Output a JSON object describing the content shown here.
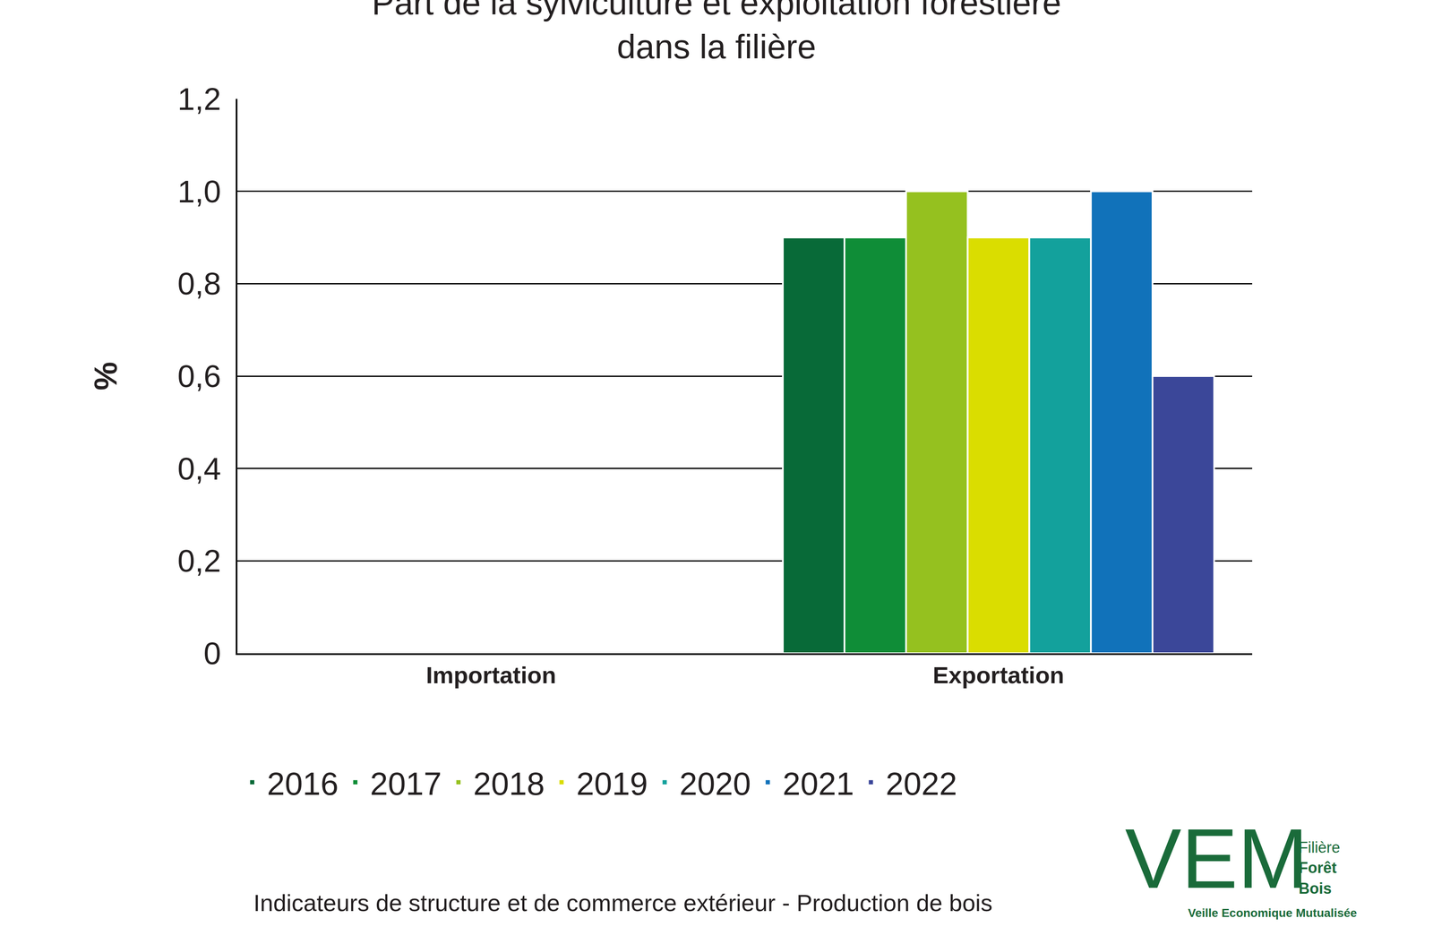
{
  "chart_data": {
    "type": "bar",
    "title": "Part de la sylviculture et exploitation forestière\ndans la filière",
    "y_label": "%",
    "categories": [
      "Importation",
      "Exportation"
    ],
    "series": [
      {
        "name": "2016",
        "color": "#086a38",
        "values": [
          0,
          0.9
        ]
      },
      {
        "name": "2017",
        "color": "#0f8d37",
        "values": [
          0,
          0.9
        ]
      },
      {
        "name": "2018",
        "color": "#95c11f",
        "values": [
          0,
          1.0
        ]
      },
      {
        "name": "2019",
        "color": "#dadd00",
        "values": [
          0,
          0.9
        ]
      },
      {
        "name": "2020",
        "color": "#13a19c",
        "values": [
          0,
          0.9
        ]
      },
      {
        "name": "2021",
        "color": "#1172ba",
        "values": [
          0,
          1.0
        ]
      },
      {
        "name": "2022",
        "color": "#3b4799",
        "values": [
          0,
          0.6
        ]
      }
    ],
    "ylim": [
      0,
      1.2
    ],
    "yticks": [
      0,
      {
        "value": 0.2,
        "label": "0,2"
      },
      {
        "value": 0.4,
        "label": "0,4"
      },
      {
        "value": 0.6,
        "label": "0,6"
      },
      {
        "value": 0.8,
        "label": "0,8"
      },
      {
        "value": 1.0,
        "label": "1,0"
      },
      {
        "value": 1.2,
        "label": "1,2"
      }
    ],
    "grid": true,
    "legend": "bottom",
    "annotations": [
      "Indicateurs de structure et de commerce extérieur - Production de bois",
      "VEM",
      "Filière",
      "Forêt",
      "Bois",
      "Veille Economique Mutualisée"
    ]
  }
}
